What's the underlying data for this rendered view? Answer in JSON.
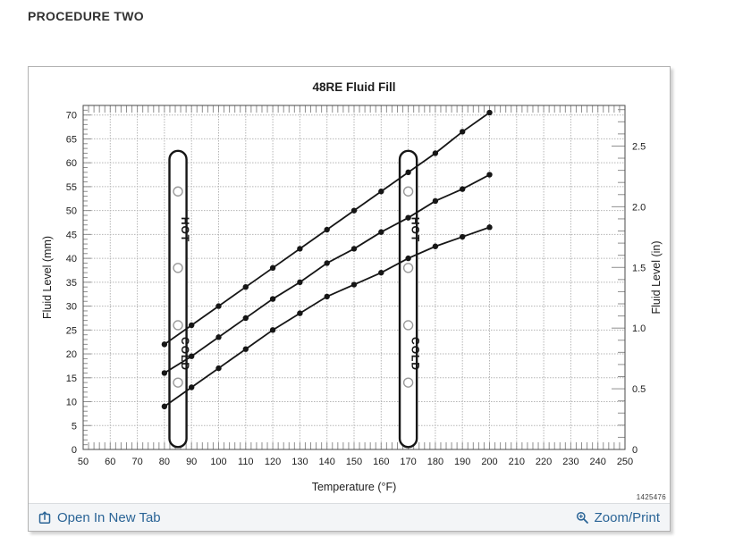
{
  "page": {
    "heading": "PROCEDURE TWO"
  },
  "panel": {
    "figure_number": "1425476",
    "footer": {
      "open_in_new_tab_label": "Open In New Tab",
      "zoom_print_label": "Zoom/Print"
    }
  },
  "colors": {
    "link_blue": "#2a6496",
    "line_color": "#161616",
    "grid_color": "#b5b5b5",
    "axis_color": "#4a4a4a",
    "tick_color": "#8f8f8f",
    "hole_stroke": "#9a9a9a",
    "text_color": "#1d1d1d"
  },
  "chart_data": {
    "type": "line",
    "title": "48RE Fluid Fill",
    "xlabel": "Temperature (°F)",
    "ylabel_left": "Fluid Level (mm)",
    "ylabel_right": "Fluid Level (in)",
    "xlim": [
      50,
      250
    ],
    "ylim_mm": [
      0,
      72
    ],
    "x_major_step": 10,
    "x_minor_step": 2,
    "y_major_step_mm": 5,
    "y_minor_step_mm": 1,
    "right_minor_step_in": 0.1,
    "mm_per_in": 25.4,
    "grid": true,
    "legend": "none",
    "x_tick_labels": [
      50,
      60,
      70,
      80,
      90,
      100,
      110,
      120,
      130,
      140,
      150,
      160,
      170,
      180,
      190,
      200,
      210,
      220,
      230,
      240,
      250
    ],
    "y_tick_labels_mm": [
      0,
      5,
      10,
      15,
      20,
      25,
      30,
      35,
      40,
      45,
      50,
      55,
      60,
      65,
      70
    ],
    "y_tick_labels_in": [
      "0",
      "0.5",
      "1.0",
      "1.5",
      "2.0",
      "2.5"
    ],
    "x": [
      80,
      90,
      100,
      110,
      120,
      130,
      140,
      150,
      160,
      170,
      180,
      190,
      200
    ],
    "series": [
      {
        "name": "upper-curve",
        "values": [
          22,
          26,
          30,
          34,
          38,
          42,
          46,
          50,
          54,
          58,
          62,
          66.5,
          70.5
        ]
      },
      {
        "name": "middle-curve",
        "values": [
          16,
          19.5,
          23.5,
          27.5,
          31.5,
          35,
          39,
          42,
          45.5,
          48.5,
          52,
          54.5,
          57.5
        ]
      },
      {
        "name": "lower-curve",
        "values": [
          9,
          13,
          17,
          21,
          25,
          28.5,
          32,
          34.5,
          37,
          40,
          42.5,
          44.5,
          46.5
        ]
      }
    ],
    "dipsticks": [
      {
        "name": "cold-check-dipstick",
        "center_f": 85,
        "half_width_f": 3.15,
        "top_mm": 62.5,
        "bottom_mm": 0.5,
        "holes_mm": [
          54,
          38,
          26,
          14
        ],
        "label_top": "HOT",
        "label_top_mm": 46,
        "label_bottom": "COLD",
        "label_bottom_mm": 20
      },
      {
        "name": "hot-check-dipstick",
        "center_f": 170,
        "half_width_f": 3.15,
        "top_mm": 62.5,
        "bottom_mm": 0.5,
        "holes_mm": [
          54,
          38,
          26,
          14
        ],
        "label_top": "HOT",
        "label_top_mm": 46,
        "label_bottom": "COLD",
        "label_bottom_mm": 20
      }
    ]
  }
}
